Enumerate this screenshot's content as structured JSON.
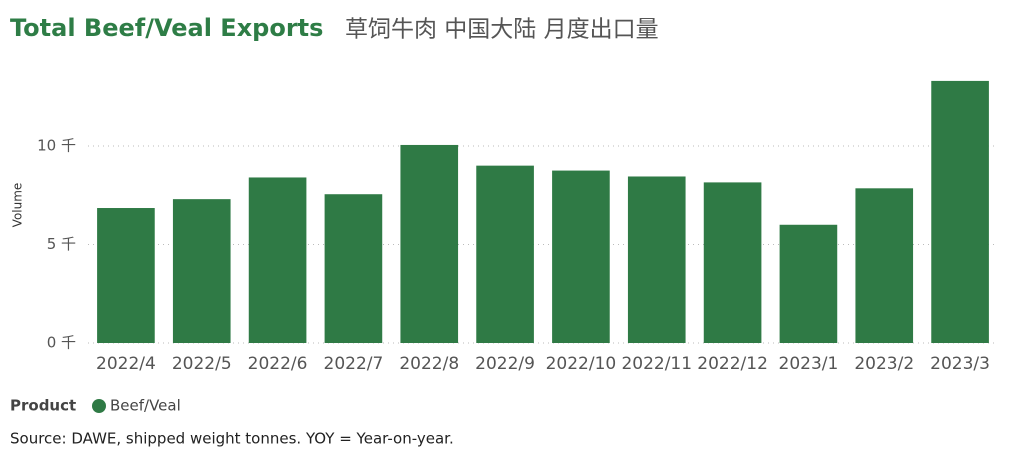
{
  "chart_data": {
    "type": "bar",
    "title": "Total Beef/Veal Exports",
    "subtitle": "草饲牛肉 中国大陆 月度出口量",
    "y_label": "Volume",
    "categories": [
      "2022/4",
      "2022/5",
      "2022/6",
      "2022/7",
      "2022/8",
      "2022/9",
      "2022/10",
      "2022/11",
      "2022/12",
      "2023/1",
      "2023/2",
      "2023/3"
    ],
    "series": [
      {
        "name": "Beef/Veal",
        "color": "#2f7a45",
        "values": [
          6850,
          7300,
          8400,
          7550,
          10050,
          9000,
          8750,
          8450,
          8150,
          6000,
          7850,
          13300
        ]
      }
    ],
    "ylim": [
      0,
      13600
    ],
    "yticks": [
      {
        "value": 0,
        "label": "0 千"
      },
      {
        "value": 5000,
        "label": "5 千"
      },
      {
        "value": 10000,
        "label": "10 千"
      }
    ],
    "grid": true,
    "legend_title": "Product",
    "legend_position": "bottom-left",
    "source": "Source: DAWE, shipped weight tonnes. YOY = Year-on-year."
  }
}
